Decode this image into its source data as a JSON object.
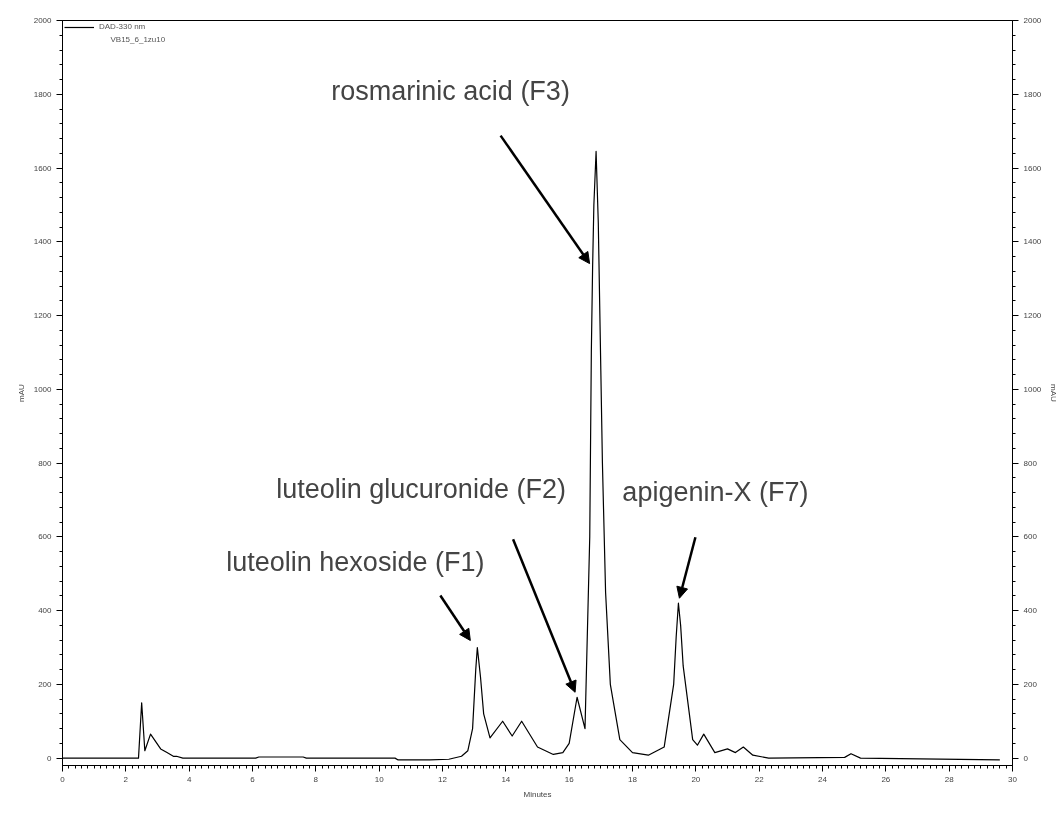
{
  "chart_data": {
    "type": "line",
    "xlabel": "Minutes",
    "ylabel": "mAU",
    "y2label": "mAU",
    "xlim": [
      0,
      30
    ],
    "xticks": [
      0,
      2,
      4,
      6,
      8,
      10,
      12,
      14,
      16,
      18,
      20,
      22,
      24,
      26,
      28,
      30
    ],
    "ylim": [
      -20,
      2000
    ],
    "yticks": [
      0,
      200,
      400,
      600,
      800,
      1000,
      1200,
      1400,
      1600,
      1800,
      2000
    ],
    "y2lim": [
      -20,
      2000
    ],
    "y2ticks": [
      0,
      200,
      400,
      600,
      800,
      1000,
      1200,
      1400,
      1600,
      1800,
      2000
    ],
    "grid": false,
    "legend": "top left",
    "marker": "none",
    "line_style": "solid",
    "series": [
      {
        "name": "DAD-330 nm",
        "color": "#000000",
        "x": [
          0,
          2.4,
          2.5,
          2.6,
          2.78,
          3.1,
          3.3,
          3.5,
          3.6,
          3.8,
          6.1,
          6.2,
          7.6,
          7.7,
          10.5,
          10.6,
          11.6,
          12.2,
          12.6,
          12.8,
          12.95,
          13.05,
          13.1,
          13.2,
          13.3,
          13.5,
          13.9,
          14.2,
          14.5,
          15.0,
          15.5,
          15.8,
          16.0,
          16.25,
          16.5,
          16.65,
          16.7,
          16.74,
          16.78,
          16.85,
          16.92,
          17.0,
          17.05,
          17.15,
          17.3,
          17.6,
          18.0,
          18.5,
          19.0,
          19.3,
          19.38,
          19.45,
          19.52,
          19.6,
          19.9,
          20.05,
          20.25,
          20.6,
          21.0,
          21.25,
          21.5,
          21.8,
          22.3,
          24.7,
          24.9,
          25.2,
          29.6
        ],
        "values": [
          0,
          0,
          150,
          20,
          65,
          25,
          15,
          5,
          5,
          0,
          0,
          3,
          3,
          0,
          0,
          -5,
          -5,
          -3,
          5,
          20,
          80,
          240,
          300,
          220,
          120,
          55,
          100,
          60,
          100,
          30,
          10,
          15,
          40,
          165,
          80,
          600,
          1100,
          1330,
          1500,
          1645,
          1450,
          1050,
          800,
          450,
          200,
          50,
          15,
          8,
          30,
          200,
          330,
          420,
          360,
          250,
          50,
          35,
          65,
          15,
          25,
          15,
          30,
          8,
          0,
          2,
          12,
          0,
          -5
        ]
      }
    ],
    "annotations": [
      "VB15_6_1zu10",
      {
        "text": "luteolin hexoside (F1)",
        "x": 13.1,
        "y": 300
      },
      {
        "text": "luteolin glucuronide (F2)",
        "x": 16.25,
        "y": 165
      },
      {
        "text": "rosmarinic acid (F3)",
        "x": 16.74,
        "y": 1330
      },
      {
        "text": "apigenin-X (F7)",
        "x": 19.45,
        "y": 420
      }
    ]
  }
}
